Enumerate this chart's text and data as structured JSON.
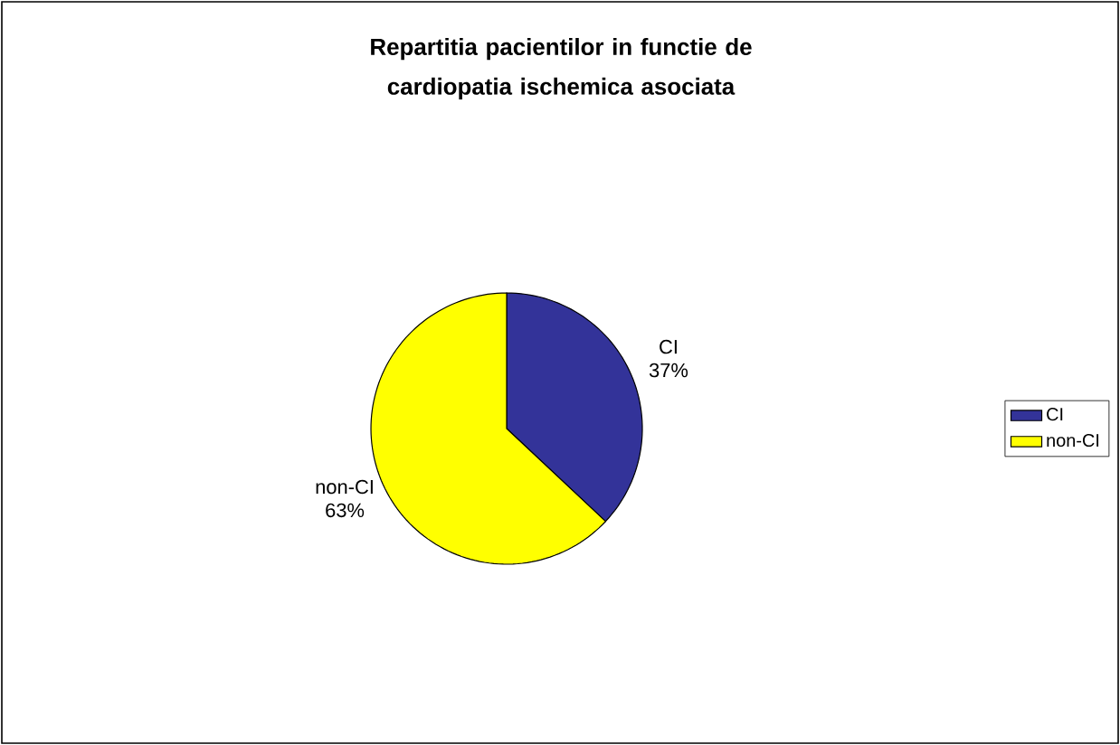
{
  "chart_data": {
    "type": "pie",
    "title": "Repartitia pacientilor in functie de cardiopatia ischemica asociata",
    "categories": [
      "CI",
      "non-CI"
    ],
    "values": [
      37,
      63
    ],
    "value_labels": [
      "37%",
      "63%"
    ],
    "colors": [
      "#333399",
      "#ffff00"
    ],
    "legend": "right"
  }
}
